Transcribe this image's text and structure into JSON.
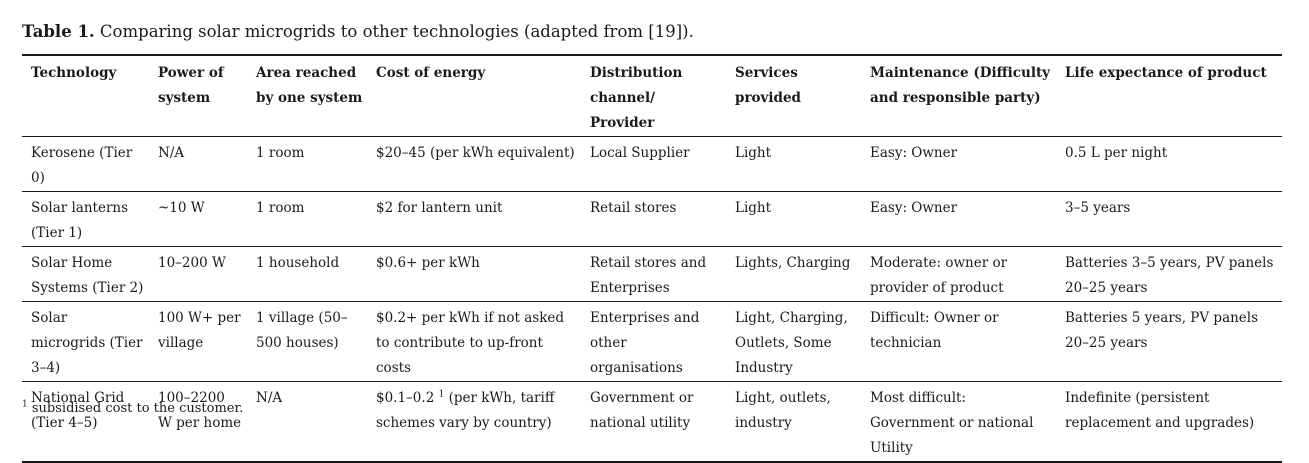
{
  "caption": {
    "label": "Table 1.",
    "text": "Comparing solar microgrids to other technologies (adapted from [19])."
  },
  "table": {
    "headers": [
      "Technology",
      "Power of system",
      "Area reached by one system",
      "Cost of energy",
      "Distribution channel/ Provider",
      "Services provided",
      "Maintenance (Difficulty and responsible party)",
      "Life expectance of product"
    ],
    "rows": [
      [
        "Kerosene (Tier 0)",
        "N/A",
        "1 room",
        "$20–45 (per kWh equivalent)",
        "Local Supplier",
        "Light",
        "Easy: Owner",
        "0.5 L per night"
      ],
      [
        "Solar lanterns (Tier 1)",
        "~10 W",
        "1 room",
        "$2 for lantern unit",
        "Retail stores",
        "Light",
        "Easy: Owner",
        "3–5 years"
      ],
      [
        "Solar Home Systems (Tier 2)",
        "10–200 W",
        "1 household",
        "$0.6+ per kWh",
        "Retail stores and Enterprises",
        "Lights, Charging",
        "Moderate: owner or provider of product",
        "Batteries 3–5 years, PV panels 20–25 years"
      ],
      [
        "Solar microgrids (Tier 3–4)",
        "100 W+ per village",
        "1 village (50–500 houses)",
        "$0.2+ per kWh if not asked to contribute to up-front costs",
        "Enterprises and other organisations",
        "Light, Charging, Outlets, Some Industry",
        "Difficult: Owner or technician",
        "Batteries 5 years, PV panels 20–25 years"
      ],
      [
        "National Grid (Tier 4–5)",
        "100–2200 W per home",
        "N/A",
        "",
        "Government or national utility",
        "Light, outlets, industry",
        "Most difficult: Government or national Utility",
        "Indefinite (persistent replacement and upgrades)"
      ]
    ],
    "grid_cost": {
      "value": "$0.1–0.2",
      "note_mark": "1",
      "rest": "(per kWh, tariff schemes vary by country)"
    }
  },
  "footnote": {
    "mark": "1",
    "text": "subsidised cost to the customer."
  }
}
